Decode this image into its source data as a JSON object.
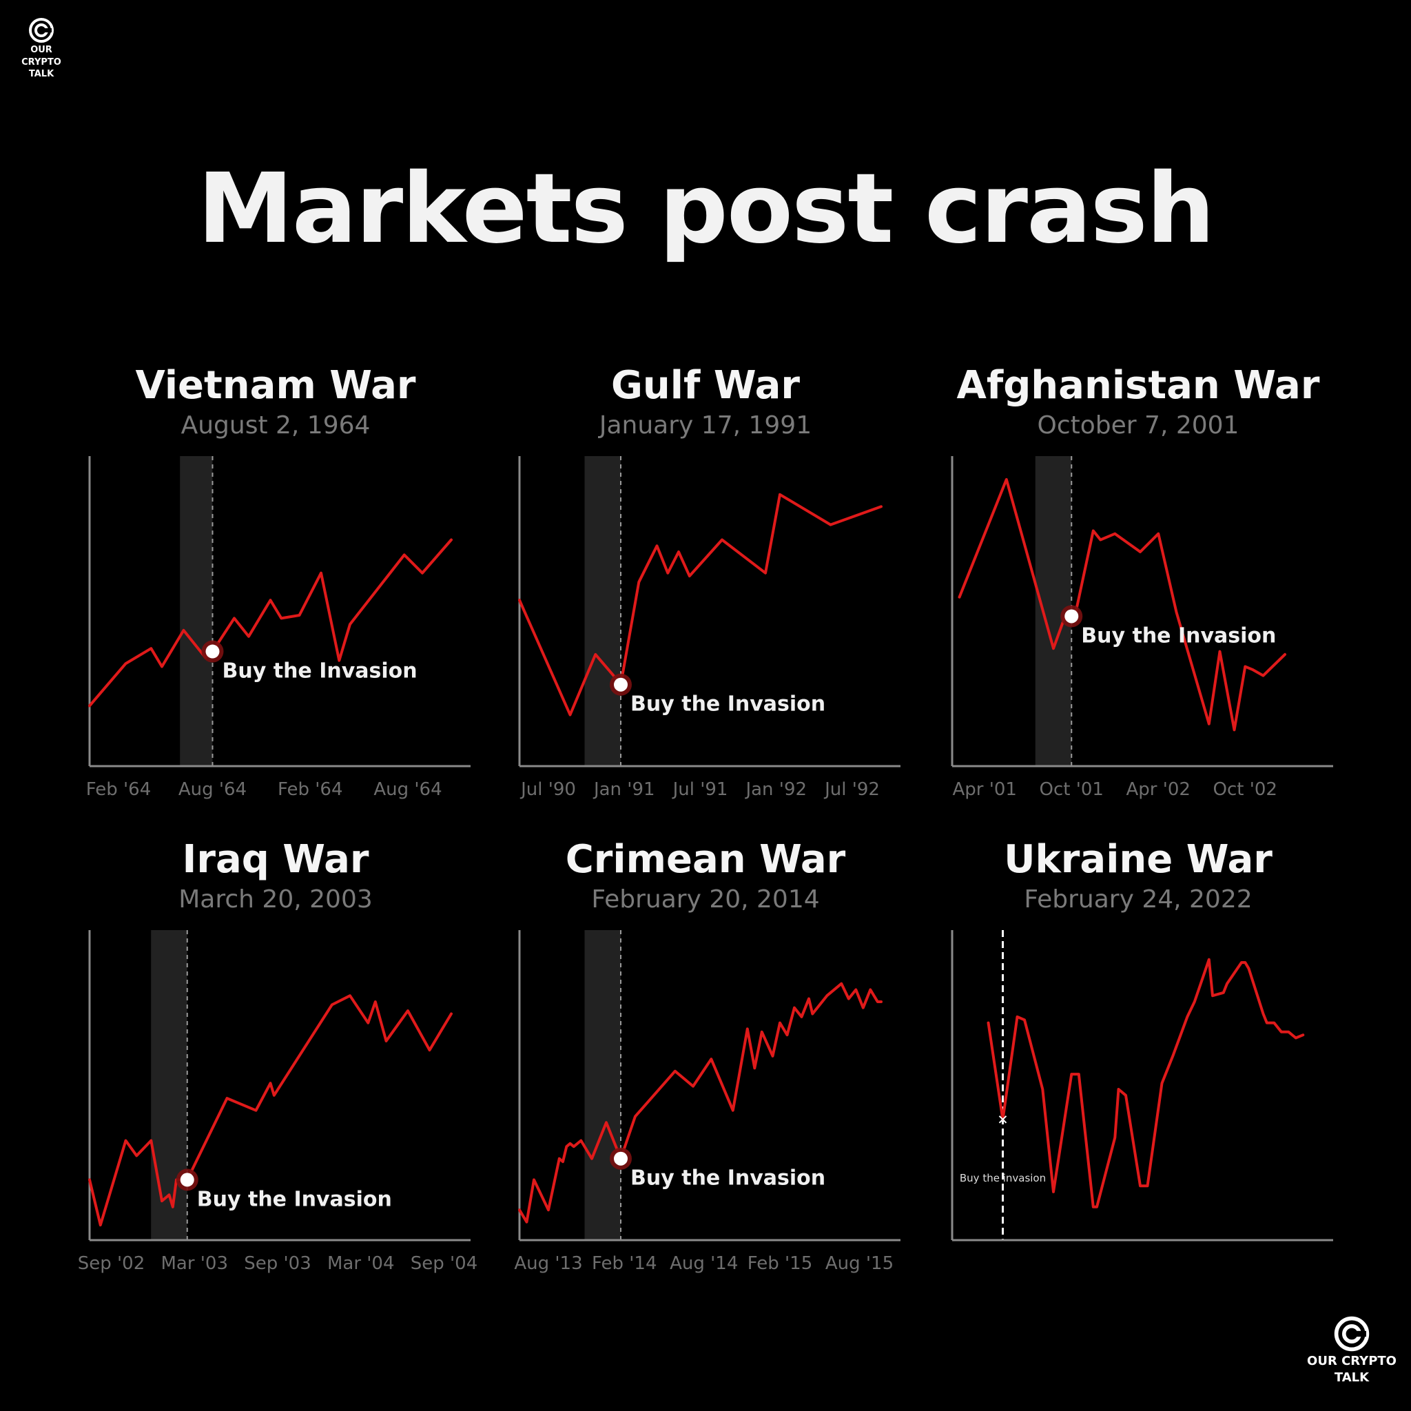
{
  "brand": {
    "line1": "OUR CRYPTO",
    "line2": "TALK"
  },
  "title": "Markets post crash",
  "colors": {
    "background": "#000000",
    "line": "#e01a1a",
    "band": "#222222",
    "axis": "#8a8a8a"
  },
  "chart_data": [
    {
      "type": "line",
      "title": "Vietnam War",
      "subtitle": "August 2, 1964",
      "xlim": [
        0,
        100
      ],
      "ylim": [
        0,
        100
      ],
      "event_x": 34,
      "band": [
        25,
        34
      ],
      "annotation": "Buy the Invasion",
      "tick_labels": [
        {
          "x": 8,
          "label": "Feb '64"
        },
        {
          "x": 34,
          "label": "Aug '64"
        },
        {
          "x": 61,
          "label": "Feb '64"
        },
        {
          "x": 88,
          "label": "Aug '64"
        }
      ],
      "series": [
        {
          "x": [
            0,
            10,
            17,
            20,
            26,
            32,
            34,
            40,
            44,
            50,
            53,
            58,
            64,
            69,
            72,
            87,
            92,
            100
          ],
          "y": [
            20,
            34,
            39,
            33,
            45,
            36,
            38,
            49,
            43,
            55,
            49,
            50,
            64,
            35,
            47,
            70,
            64,
            75
          ]
        }
      ]
    },
    {
      "type": "line",
      "title": "Gulf War",
      "subtitle": "January 17, 1991",
      "xlim": [
        0,
        100
      ],
      "ylim": [
        0,
        100
      ],
      "event_x": 28,
      "band": [
        18,
        28
      ],
      "annotation": "Buy the Invasion",
      "tick_labels": [
        {
          "x": 8,
          "label": "Jul '90"
        },
        {
          "x": 29,
          "label": "Jan '91"
        },
        {
          "x": 50,
          "label": "Jul '91"
        },
        {
          "x": 71,
          "label": "Jan '92"
        },
        {
          "x": 92,
          "label": "Jul '92"
        }
      ],
      "series": [
        {
          "x": [
            0,
            14,
            21,
            26,
            28,
            33,
            38,
            41,
            44,
            47,
            56,
            68,
            72,
            86,
            100
          ],
          "y": [
            55,
            17,
            37,
            30,
            27,
            61,
            73,
            64,
            71,
            63,
            75,
            64,
            90,
            80,
            86
          ]
        }
      ]
    },
    {
      "type": "line",
      "title": "Afghanistan War",
      "subtitle": "October 7, 2001",
      "xlim": [
        0,
        100
      ],
      "ylim": [
        0,
        100
      ],
      "event_x": 33,
      "band": [
        23,
        33
      ],
      "annotation": "Buy the Invasion",
      "tick_labels": [
        {
          "x": 9,
          "label": "Apr '01"
        },
        {
          "x": 33,
          "label": "Oct '01"
        },
        {
          "x": 57,
          "label": "Apr '02"
        },
        {
          "x": 81,
          "label": "Oct '02"
        }
      ],
      "series": [
        {
          "x": [
            2,
            15,
            28,
            31,
            34,
            39,
            41,
            45,
            52,
            57,
            62,
            71,
            74,
            78,
            81,
            83,
            86,
            92
          ],
          "y": [
            56,
            95,
            39,
            49,
            50,
            78,
            75,
            77,
            71,
            77,
            51,
            14,
            38,
            12,
            33,
            32,
            30,
            37
          ]
        }
      ]
    },
    {
      "type": "line",
      "title": "Iraq War",
      "subtitle": "March 20, 2003",
      "xlim": [
        0,
        100
      ],
      "ylim": [
        0,
        100
      ],
      "event_x": 27,
      "band": [
        17,
        27
      ],
      "annotation": "Buy the Invasion",
      "tick_labels": [
        {
          "x": 6,
          "label": "Sep '02"
        },
        {
          "x": 29,
          "label": "Mar '03"
        },
        {
          "x": 52,
          "label": "Sep '03"
        },
        {
          "x": 75,
          "label": "Mar '04"
        },
        {
          "x": 98,
          "label": "Sep '04"
        }
      ],
      "series": [
        {
          "x": [
            0,
            3,
            10,
            13,
            17,
            20,
            22,
            23,
            24,
            27,
            38,
            46,
            50,
            51,
            67,
            72,
            77,
            79,
            82,
            88,
            94,
            100
          ],
          "y": [
            20,
            5,
            33,
            28,
            33,
            13,
            15,
            11,
            20,
            20,
            47,
            43,
            52,
            48,
            78,
            81,
            72,
            79,
            66,
            76,
            63,
            75
          ]
        }
      ]
    },
    {
      "type": "line",
      "title": "Crimean War",
      "subtitle": "February 20, 2014",
      "xlim": [
        0,
        100
      ],
      "ylim": [
        0,
        100
      ],
      "event_x": 28,
      "band": [
        18,
        28
      ],
      "annotation": "Buy the Invasion",
      "tick_labels": [
        {
          "x": 8,
          "label": "Aug '13"
        },
        {
          "x": 29,
          "label": "Feb '14"
        },
        {
          "x": 51,
          "label": "Aug '14"
        },
        {
          "x": 72,
          "label": "Feb '15"
        },
        {
          "x": 94,
          "label": "Aug '15"
        }
      ],
      "series": [
        {
          "x": [
            0,
            2,
            4,
            8,
            11,
            12,
            13,
            14,
            15,
            17,
            20,
            24,
            28,
            32,
            43,
            48,
            53,
            59,
            63,
            65,
            67,
            70,
            72,
            74,
            76,
            78,
            80,
            81,
            85,
            89,
            91,
            93,
            95,
            97,
            99,
            100
          ],
          "y": [
            10,
            6,
            20,
            10,
            27,
            26,
            31,
            32,
            31,
            33,
            27,
            39,
            27,
            41,
            56,
            51,
            60,
            43,
            70,
            57,
            69,
            61,
            72,
            68,
            77,
            74,
            80,
            75,
            81,
            85,
            80,
            83,
            77,
            83,
            79,
            79
          ]
        }
      ]
    },
    {
      "type": "line",
      "title": "Ukraine War",
      "subtitle": "February 24, 2022",
      "xlim": [
        0,
        100
      ],
      "ylim": [
        0,
        100
      ],
      "event_x": 14,
      "annotation": "Buy the invasion",
      "tick_labels": [],
      "series": [
        {
          "x": [
            10,
            14,
            18,
            20,
            25,
            28,
            33,
            35,
            39,
            40,
            45,
            46,
            48,
            52,
            54,
            58,
            61,
            65,
            67,
            71,
            72,
            75,
            76,
            80,
            81,
            82,
            86,
            87,
            89,
            91,
            93,
            95,
            97
          ],
          "y": [
            72,
            40,
            74,
            73,
            50,
            16,
            55,
            55,
            11,
            11,
            34,
            50,
            48,
            18,
            18,
            52,
            61,
            74,
            79,
            93,
            81,
            82,
            85,
            92,
            92,
            90,
            75,
            72,
            72,
            69,
            69,
            67,
            68
          ]
        }
      ]
    }
  ]
}
